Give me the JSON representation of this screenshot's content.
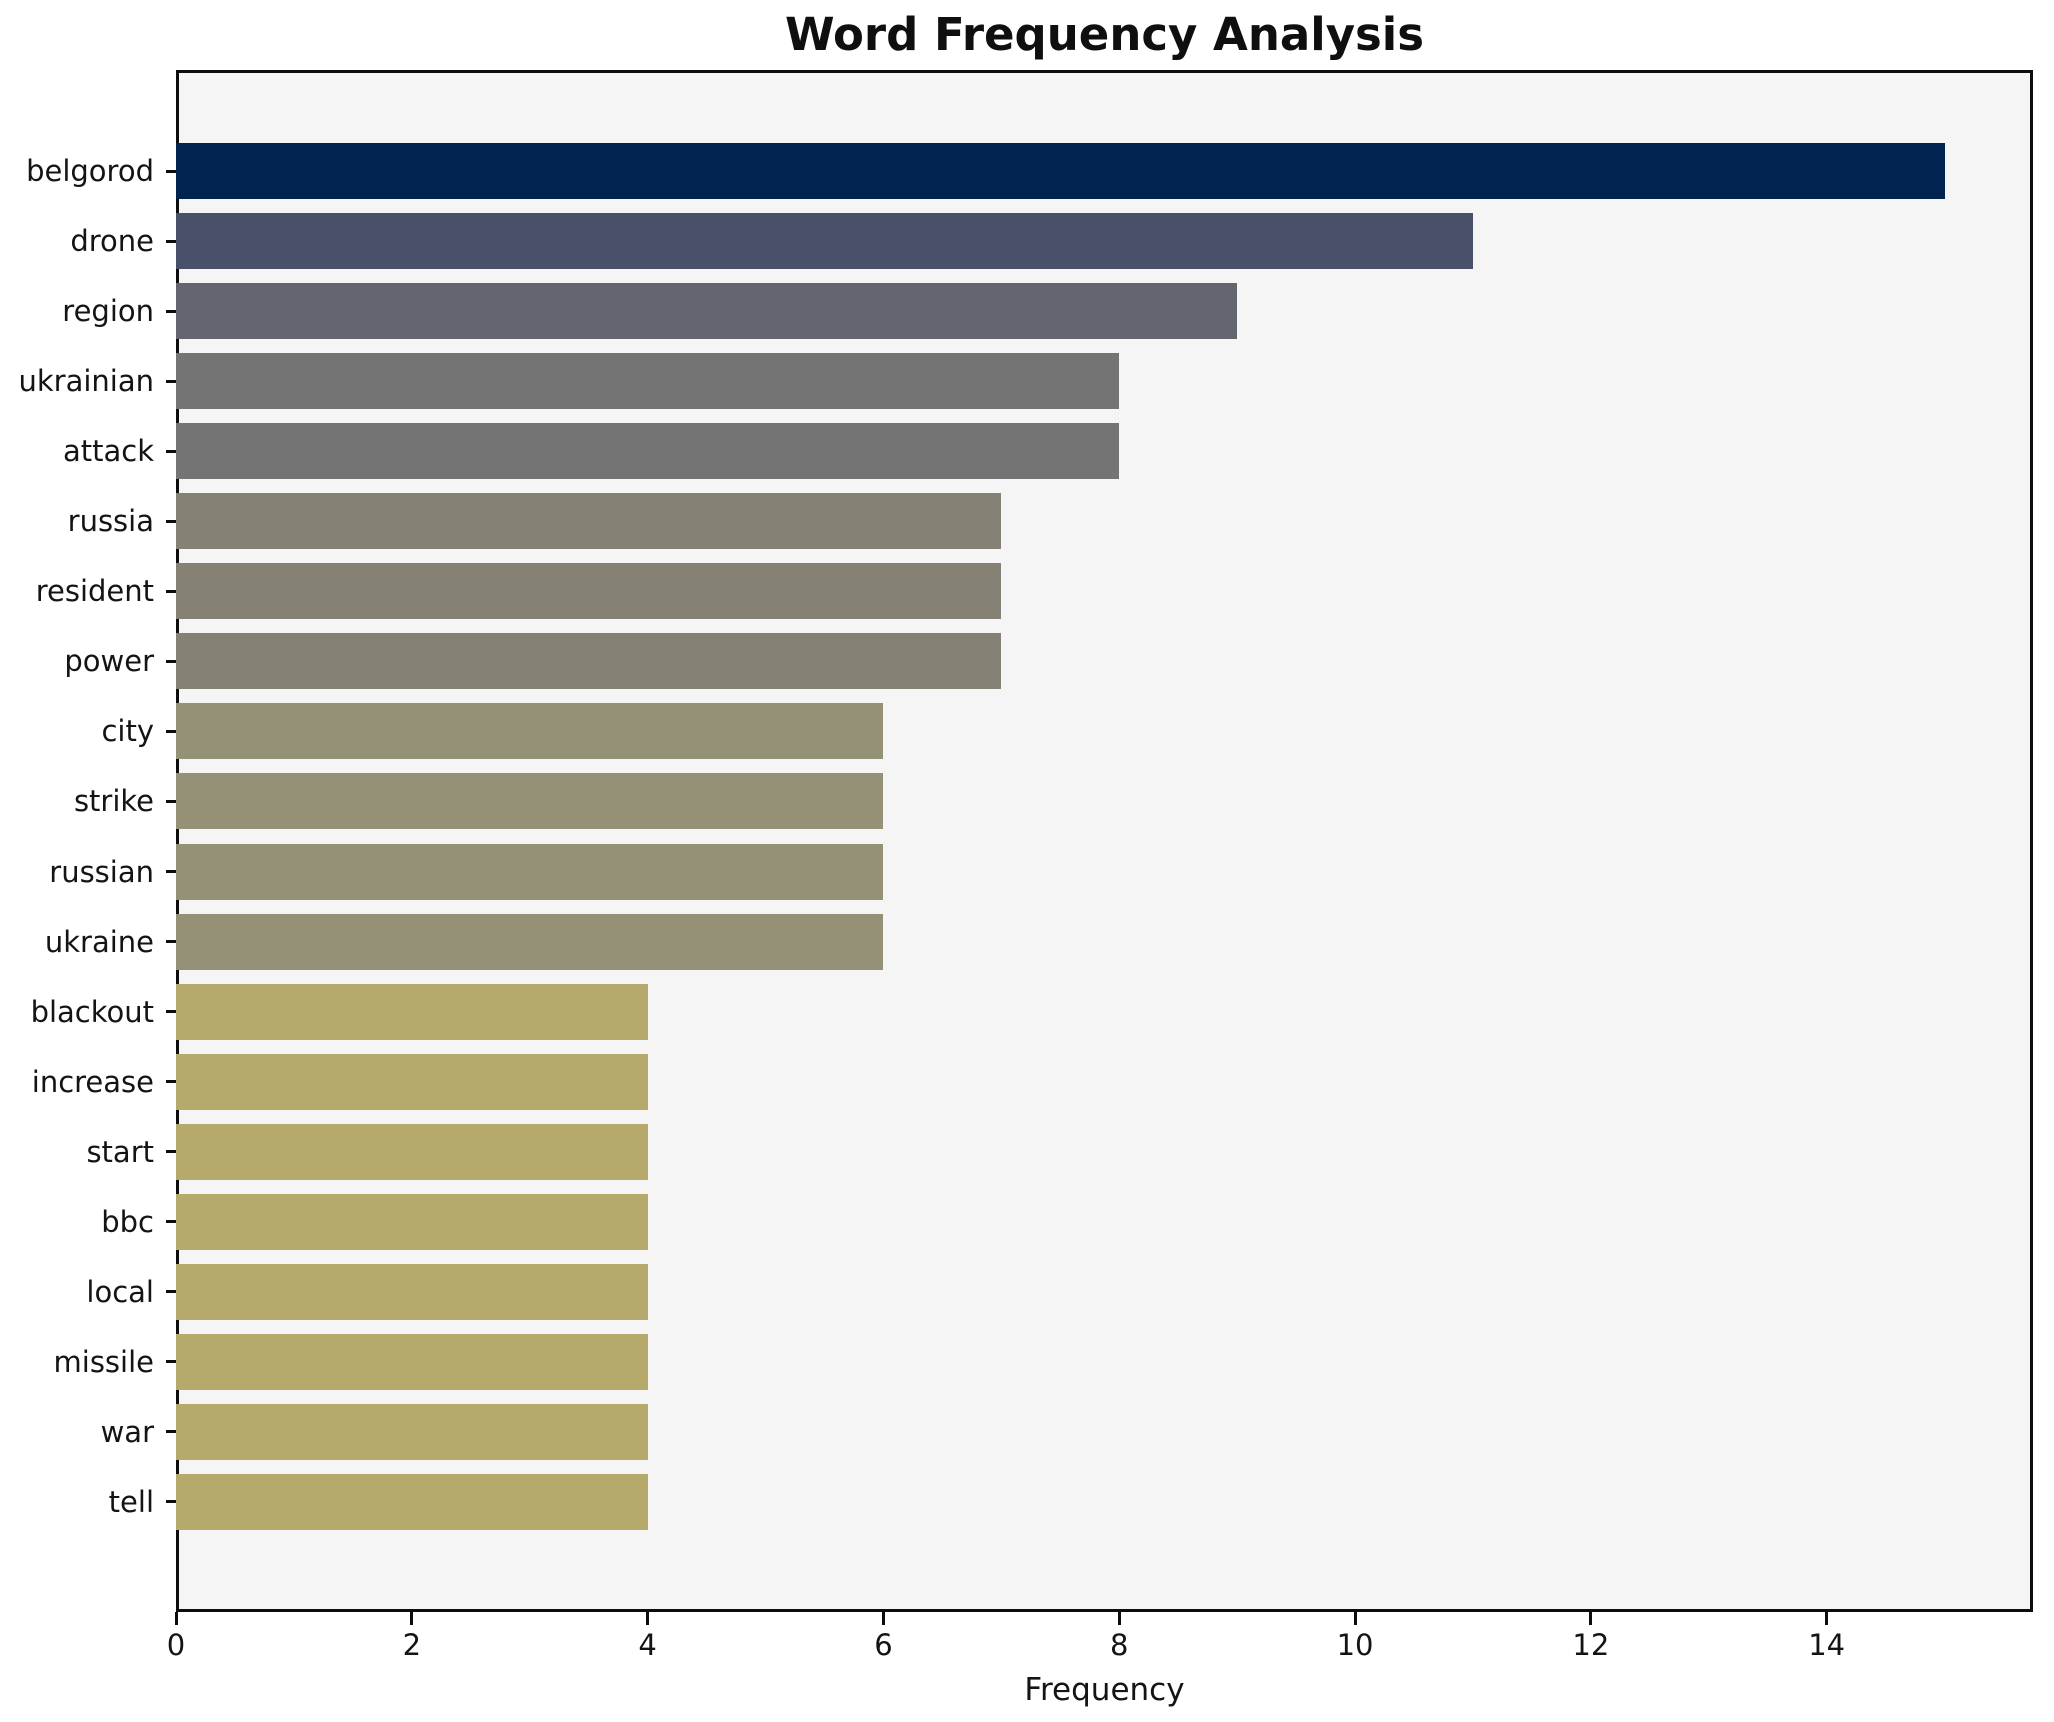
{
  "title": "Word Frequency Analysis",
  "chart_data": {
    "type": "bar",
    "orientation": "horizontal",
    "title": "Word Frequency Analysis",
    "xlabel": "Frequency",
    "ylabel": "",
    "categories": [
      "belgorod",
      "drone",
      "region",
      "ukrainian",
      "attack",
      "russia",
      "resident",
      "power",
      "city",
      "strike",
      "russian",
      "ukraine",
      "blackout",
      "increase",
      "start",
      "bbc",
      "local",
      "missile",
      "war",
      "tell"
    ],
    "values": [
      15,
      11,
      9,
      8,
      8,
      7,
      7,
      7,
      6,
      6,
      6,
      6,
      4,
      4,
      4,
      4,
      4,
      4,
      4,
      4
    ],
    "bar_colors": [
      "#012350",
      "#485169",
      "#64666f",
      "#747475",
      "#747475",
      "#858275",
      "#858275",
      "#858275",
      "#949177",
      "#949177",
      "#949177",
      "#949177",
      "#b5aa6c",
      "#b5aa6c",
      "#b5aa6c",
      "#b5aa6c",
      "#b5aa6c",
      "#b5aa6c",
      "#b5aa6c",
      "#b5aa6c"
    ],
    "xticks": [
      0,
      2,
      4,
      6,
      8,
      10,
      12,
      14
    ],
    "xlim": [
      0,
      15.75
    ],
    "grid": false,
    "legend": "none",
    "plot_background": "#f5f5f6",
    "figure_background": "#ffffff",
    "spine_color": "#0d0d0d"
  }
}
